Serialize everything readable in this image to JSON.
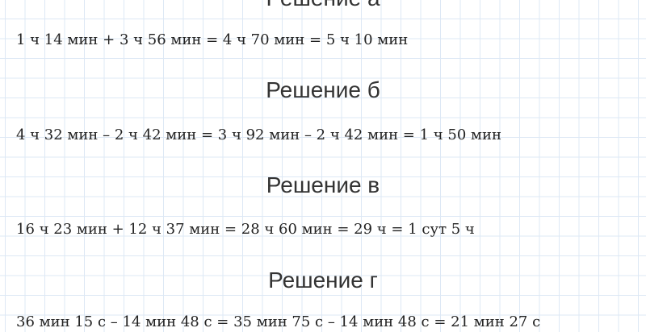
{
  "sections": [
    {
      "heading": "Решение а",
      "equation": "1 ч 14 мин + 3 ч 56 мин = 4 ч 70 мин = 5 ч 10 мин"
    },
    {
      "heading": "Решение б",
      "equation": "4 ч 32 мин – 2 ч 42 мин = 3 ч 92 мин – 2 ч 42 мин = 1 ч 50 мин"
    },
    {
      "heading": "Решение в",
      "equation": "16 ч 23 мин + 12 ч 37 мин = 28 ч 60 мин = 29 ч = 1 сут 5 ч"
    },
    {
      "heading": "Решение г",
      "equation": "36 мин 15 с – 14 мин 48 с = 35 мин 75 с – 14 мин 48 с = 21 мин 27 с"
    }
  ]
}
